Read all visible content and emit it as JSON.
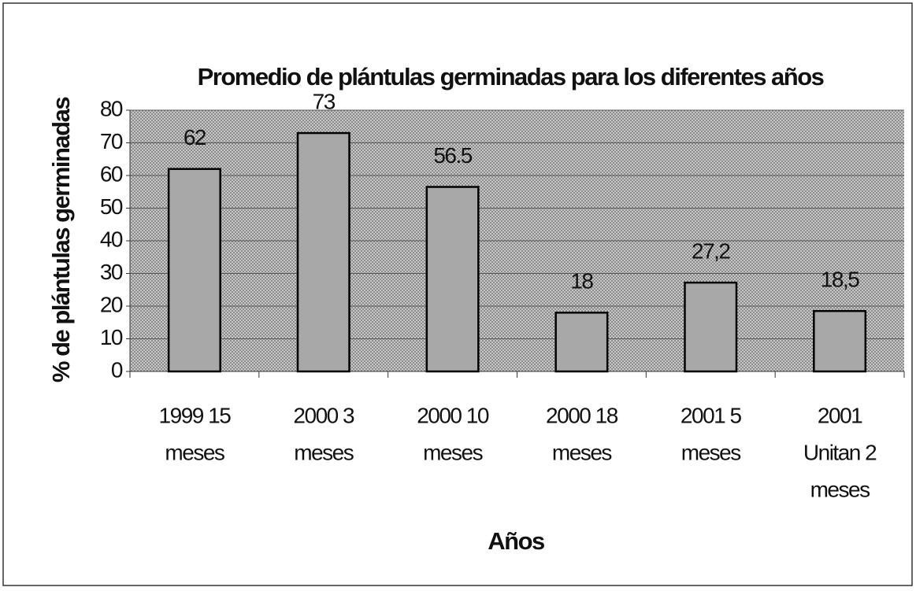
{
  "chart_data": {
    "type": "bar",
    "title": "Promedio de plántulas germinadas para los diferentes años",
    "y_label": "% de plántulas germinadas",
    "x_label": "Años",
    "categories": [
      [
        "1999 15",
        "meses"
      ],
      [
        "2000 3",
        "meses"
      ],
      [
        "2000 10",
        "meses"
      ],
      [
        "2000 18",
        "meses"
      ],
      [
        "2001 5",
        "meses"
      ],
      [
        "2001",
        "Unitan 2",
        "meses"
      ]
    ],
    "values": [
      62,
      73,
      56.5,
      18,
      27.2,
      18.5
    ],
    "value_labels": [
      "62",
      "73",
      "56.5",
      "18",
      "27,2",
      "18,5"
    ],
    "color": "#a8a8a8",
    "ylim": [
      0,
      80
    ],
    "yticks": [
      0,
      10,
      20,
      30,
      40,
      50,
      60,
      70,
      80
    ],
    "grid": true
  }
}
